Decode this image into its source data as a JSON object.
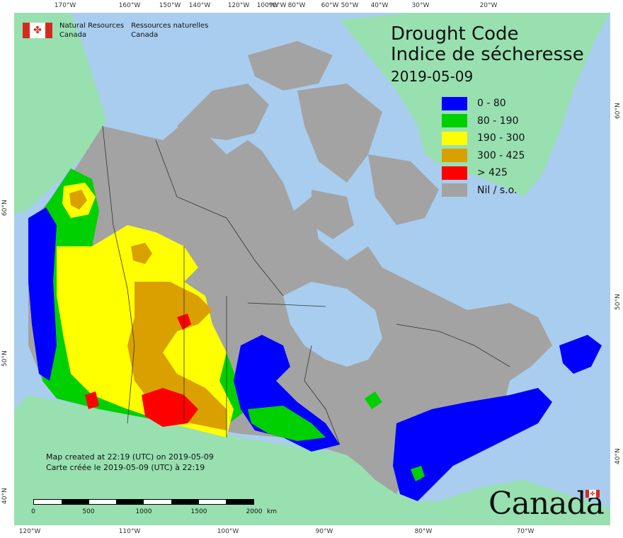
{
  "agency": {
    "line1_en": "Natural Resources",
    "line2_en": "Canada",
    "line1_fr": "Ressources naturelles",
    "line2_fr": "Canada"
  },
  "title": {
    "line1": "Drought Code",
    "line2": "Indice de sécheresse",
    "date": "2019-05-09"
  },
  "legend": [
    {
      "label": "0 - 80",
      "color": "#0000ff"
    },
    {
      "label": "80 - 190",
      "color": "#00d000"
    },
    {
      "label": "190 - 300",
      "color": "#ffff00"
    },
    {
      "label": "300 - 425",
      "color": "#d9a000"
    },
    {
      "label": "> 425",
      "color": "#ff0000"
    },
    {
      "label": "Nil / s.o.",
      "color": "#a3a3a3"
    }
  ],
  "credits": {
    "line_en": "Map created at 22:19 (UTC) on 2019-05-09",
    "line_fr": "Carte créée le 2019-05-09 (UTC) à 22:19"
  },
  "scale": {
    "labels": [
      "0",
      "500",
      "1000",
      "1500",
      "2000"
    ],
    "unit": "km"
  },
  "ticks": {
    "top": [
      "170°W",
      "160°W",
      "150°W",
      "140°W",
      "120°W",
      "100°W",
      "90°W",
      "80°W",
      "60°W",
      "50°W",
      "40°W",
      "30°W",
      "20°W"
    ],
    "bottom": [
      "120°W",
      "110°W",
      "100°W",
      "90°W",
      "80°W",
      "70°W"
    ],
    "left": [
      "60°N",
      "50°N",
      "40°N"
    ],
    "right": [
      "60°N",
      "50°N",
      "40°N"
    ]
  },
  "wordmark": "Canada",
  "colors": {
    "ocean": "#a9cdee",
    "foreign_land": "#98e0b0",
    "nil_land": "#a3a3a3",
    "low": "#0000ff",
    "moderate": "#00d000",
    "high": "#ffff00",
    "very_high": "#d9a000",
    "extreme": "#ff0000"
  }
}
